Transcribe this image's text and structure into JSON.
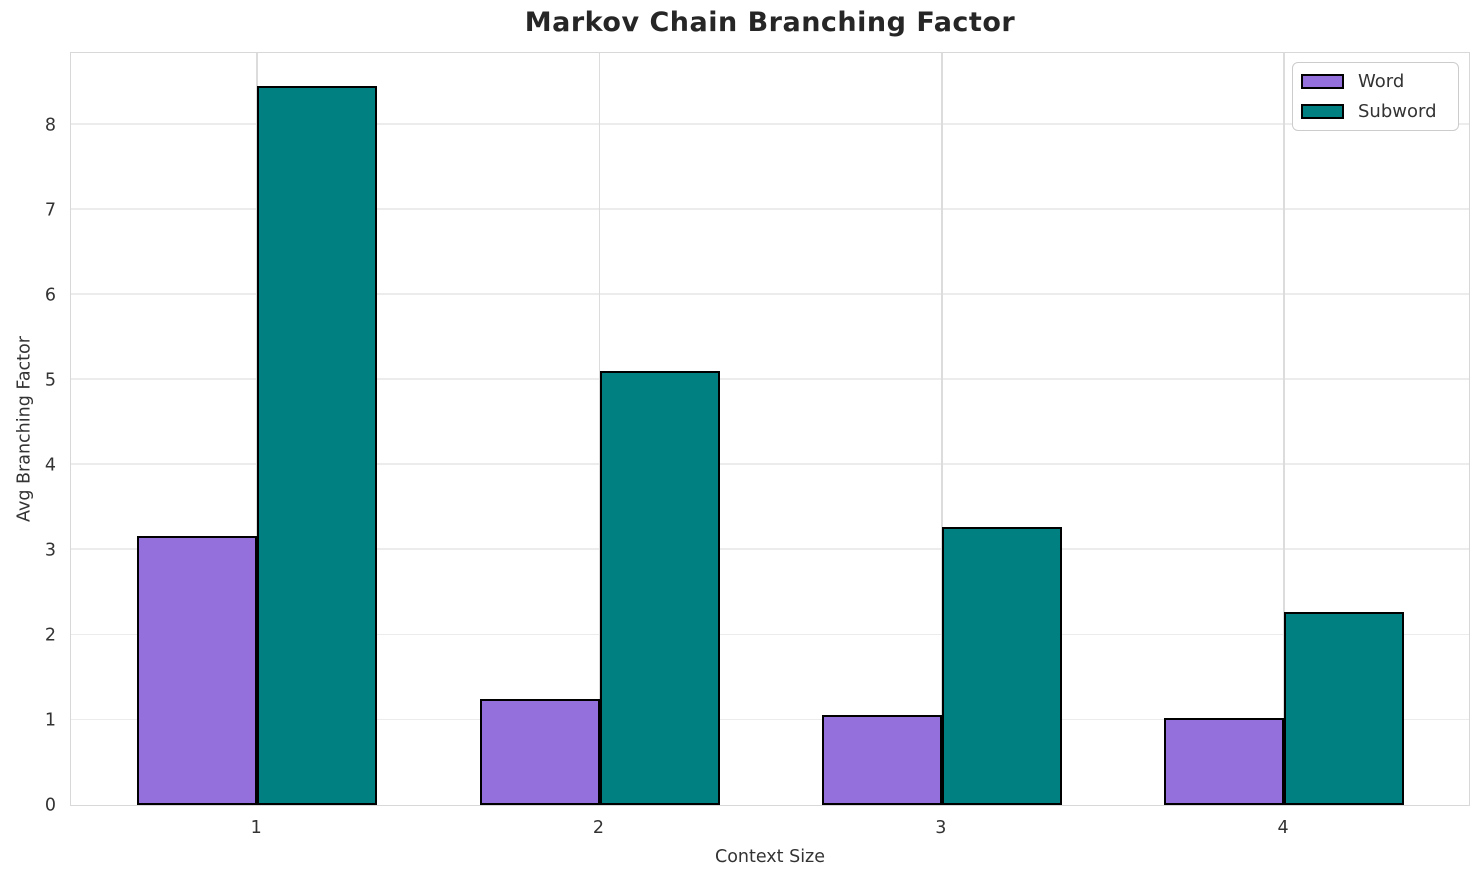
{
  "figure": {
    "background": "#ffffff"
  },
  "chart_data": {
    "type": "bar",
    "title": "Markov Chain Branching Factor",
    "xlabel": "Context Size",
    "ylabel": "Avg Branching Factor",
    "categories": [
      "1",
      "2",
      "3",
      "4"
    ],
    "series": [
      {
        "name": "Word",
        "color": "#9370DB",
        "edgecolor": "#000000",
        "values": [
          3.16,
          1.25,
          1.06,
          1.02
        ]
      },
      {
        "name": "Subword",
        "color": "#008080",
        "edgecolor": "#000000",
        "values": [
          8.46,
          5.11,
          3.27,
          2.27
        ]
      }
    ],
    "ylim": [
      0,
      8.87
    ],
    "yticks": [
      0,
      1,
      2,
      3,
      4,
      5,
      6,
      7,
      8
    ],
    "grid": true,
    "grid_color": "#ececec",
    "legend_position": "upper right",
    "legend_entries": [
      "Word",
      "Subword"
    ]
  }
}
